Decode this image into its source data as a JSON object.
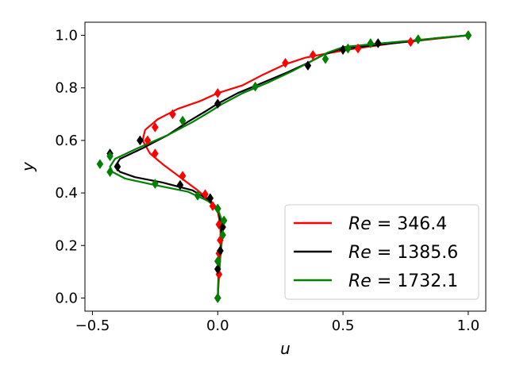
{
  "chart_data": {
    "type": "line",
    "title": "",
    "xlabel": "u",
    "ylabel": "y",
    "xlim": [
      -0.53,
      1.07
    ],
    "ylim": [
      -0.05,
      1.05
    ],
    "xticks": [
      -0.5,
      0.0,
      0.5,
      1.0
    ],
    "xtick_labels": [
      "−0.5",
      "0.0",
      "0.5",
      "1.0"
    ],
    "yticks": [
      0.0,
      0.2,
      0.4,
      0.6,
      0.8,
      1.0
    ],
    "ytick_labels": [
      "0.0",
      "0.2",
      "0.4",
      "0.6",
      "0.8",
      "1.0"
    ],
    "grid": false,
    "legend_position": "bottom-right",
    "series": [
      {
        "name": "Re = 346.4",
        "color": "#ff0000",
        "line": [
          [
            0.0,
            0.0
          ],
          [
            0.005,
            0.08
          ],
          [
            0.01,
            0.15
          ],
          [
            0.012,
            0.22
          ],
          [
            0.01,
            0.28
          ],
          [
            0.0,
            0.33
          ],
          [
            -0.03,
            0.37
          ],
          [
            -0.08,
            0.41
          ],
          [
            -0.15,
            0.46
          ],
          [
            -0.22,
            0.51
          ],
          [
            -0.27,
            0.55
          ],
          [
            -0.3,
            0.6
          ],
          [
            -0.29,
            0.64
          ],
          [
            -0.24,
            0.68
          ],
          [
            -0.16,
            0.72
          ],
          [
            -0.07,
            0.75
          ],
          [
            0.0,
            0.78
          ],
          [
            0.1,
            0.81
          ],
          [
            0.18,
            0.85
          ],
          [
            0.27,
            0.89
          ],
          [
            0.35,
            0.915
          ],
          [
            0.43,
            0.93
          ],
          [
            0.55,
            0.95
          ],
          [
            0.7,
            0.97
          ],
          [
            0.85,
            0.985
          ],
          [
            1.0,
            1.0
          ]
        ],
        "markers": [
          [
            0.0,
            0.0
          ],
          [
            0.005,
            0.09
          ],
          [
            0.005,
            0.17
          ],
          [
            0.01,
            0.22
          ],
          [
            0.005,
            0.28
          ],
          [
            -0.02,
            0.35
          ],
          [
            -0.05,
            0.395
          ],
          [
            -0.14,
            0.465
          ],
          [
            -0.25,
            0.55
          ],
          [
            -0.28,
            0.6
          ],
          [
            -0.25,
            0.65
          ],
          [
            -0.18,
            0.7
          ],
          [
            0.0,
            0.78
          ],
          [
            0.27,
            0.895
          ],
          [
            0.38,
            0.925
          ],
          [
            0.56,
            0.95
          ],
          [
            0.77,
            0.975
          ],
          [
            1.0,
            1.0
          ]
        ]
      },
      {
        "name": "Re = 1385.6",
        "color": "#000000",
        "line": [
          [
            0.0,
            0.0
          ],
          [
            0.003,
            0.08
          ],
          [
            0.008,
            0.15
          ],
          [
            0.012,
            0.2
          ],
          [
            0.015,
            0.25
          ],
          [
            0.01,
            0.3
          ],
          [
            0.0,
            0.34
          ],
          [
            -0.03,
            0.37
          ],
          [
            -0.1,
            0.41
          ],
          [
            -0.22,
            0.44
          ],
          [
            -0.33,
            0.46
          ],
          [
            -0.39,
            0.48
          ],
          [
            -0.41,
            0.5
          ],
          [
            -0.39,
            0.53
          ],
          [
            -0.3,
            0.57
          ],
          [
            -0.2,
            0.62
          ],
          [
            -0.12,
            0.67
          ],
          [
            -0.05,
            0.71
          ],
          [
            0.0,
            0.74
          ],
          [
            0.08,
            0.78
          ],
          [
            0.18,
            0.82
          ],
          [
            0.28,
            0.86
          ],
          [
            0.36,
            0.895
          ],
          [
            0.42,
            0.925
          ],
          [
            0.48,
            0.945
          ],
          [
            0.6,
            0.96
          ],
          [
            0.75,
            0.975
          ],
          [
            0.88,
            0.99
          ],
          [
            1.0,
            1.0
          ]
        ],
        "markers": [
          [
            0.0,
            0.0
          ],
          [
            0.0,
            0.11
          ],
          [
            0.01,
            0.18
          ],
          [
            0.02,
            0.27
          ],
          [
            0.0,
            0.34
          ],
          [
            -0.03,
            0.38
          ],
          [
            -0.15,
            0.43
          ],
          [
            -0.4,
            0.5
          ],
          [
            -0.43,
            0.55
          ],
          [
            -0.31,
            0.6
          ],
          [
            0.0,
            0.74
          ],
          [
            0.36,
            0.885
          ],
          [
            0.5,
            0.945
          ],
          [
            0.64,
            0.97
          ],
          [
            1.0,
            1.0
          ]
        ]
      },
      {
        "name": "Re = 1732.1",
        "color": "#008000",
        "line": [
          [
            0.0,
            0.0
          ],
          [
            0.004,
            0.08
          ],
          [
            0.01,
            0.15
          ],
          [
            0.015,
            0.2
          ],
          [
            0.02,
            0.25
          ],
          [
            0.015,
            0.3
          ],
          [
            0.0,
            0.34
          ],
          [
            -0.04,
            0.37
          ],
          [
            -0.12,
            0.405
          ],
          [
            -0.25,
            0.43
          ],
          [
            -0.37,
            0.455
          ],
          [
            -0.42,
            0.48
          ],
          [
            -0.43,
            0.5
          ],
          [
            -0.41,
            0.53
          ],
          [
            -0.32,
            0.57
          ],
          [
            -0.2,
            0.62
          ],
          [
            -0.1,
            0.67
          ],
          [
            -0.03,
            0.71
          ],
          [
            0.02,
            0.74
          ],
          [
            0.1,
            0.78
          ],
          [
            0.2,
            0.82
          ],
          [
            0.3,
            0.865
          ],
          [
            0.38,
            0.905
          ],
          [
            0.44,
            0.935
          ],
          [
            0.5,
            0.955
          ],
          [
            0.6,
            0.965
          ],
          [
            0.75,
            0.978
          ],
          [
            0.88,
            0.99
          ],
          [
            1.0,
            1.0
          ]
        ],
        "markers": [
          [
            0.0,
            0.0
          ],
          [
            0.0,
            0.14
          ],
          [
            0.02,
            0.24
          ],
          [
            0.025,
            0.295
          ],
          [
            0.0,
            0.34
          ],
          [
            -0.08,
            0.39
          ],
          [
            -0.25,
            0.435
          ],
          [
            -0.43,
            0.48
          ],
          [
            -0.47,
            0.51
          ],
          [
            -0.43,
            0.54
          ],
          [
            -0.14,
            0.675
          ],
          [
            0.15,
            0.805
          ],
          [
            0.43,
            0.91
          ],
          [
            0.52,
            0.95
          ],
          [
            0.61,
            0.97
          ],
          [
            0.8,
            0.985
          ],
          [
            1.0,
            1.0
          ]
        ]
      }
    ]
  }
}
